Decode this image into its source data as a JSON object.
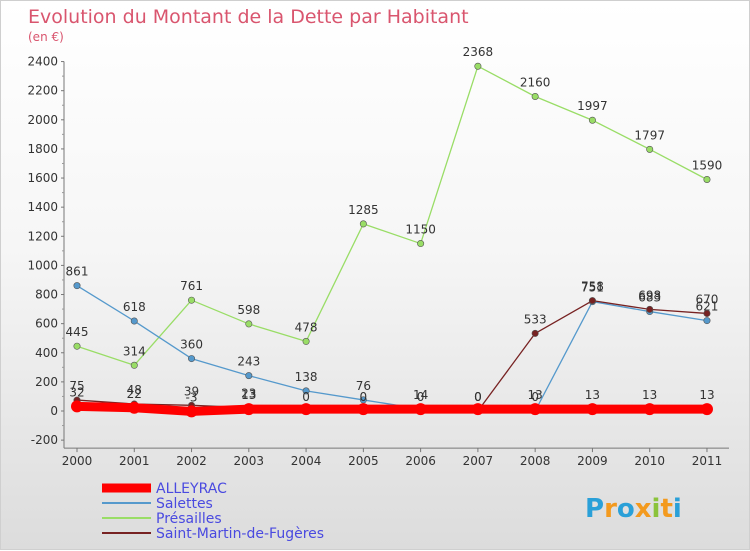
{
  "chart_data": {
    "type": "line",
    "title": "Evolution du Montant de la Dette par Habitant",
    "subtitle": "(en €)",
    "xlabel": "",
    "ylabel": "",
    "x": [
      "2000",
      "2001",
      "2002",
      "2003",
      "2004",
      "2005",
      "2006",
      "2007",
      "2008",
      "2009",
      "2010",
      "2011"
    ],
    "ylim": [
      -200,
      2400
    ],
    "yticks": [
      -200,
      0,
      200,
      400,
      600,
      800,
      1000,
      1200,
      1400,
      1600,
      1800,
      2000,
      2200,
      2400
    ],
    "grid": false,
    "legend_position": "bottom-left",
    "series": [
      {
        "name": "ALLEYRAC",
        "color": "#ff0000",
        "values": [
          32,
          22,
          -3,
          13,
          13,
          13,
          13,
          13,
          13,
          13,
          13,
          13
        ],
        "labels": [
          "32",
          "22",
          "-3",
          "13",
          "",
          "",
          "",
          "",
          "13",
          "13",
          "13",
          "13"
        ]
      },
      {
        "name": "Salettes",
        "color": "#5599cc",
        "values": [
          861,
          618,
          360,
          243,
          138,
          76,
          14,
          0,
          0,
          751,
          683,
          621
        ],
        "labels": [
          "861",
          "618",
          "360",
          "243",
          "138",
          "76",
          "14",
          "0",
          "0",
          "751",
          "683",
          "621"
        ]
      },
      {
        "name": "Présailles",
        "color": "#99dd66",
        "values": [
          445,
          314,
          761,
          598,
          478,
          1285,
          1150,
          2368,
          2160,
          1997,
          1797,
          1590
        ],
        "labels": [
          "445",
          "314",
          "761",
          "598",
          "478",
          "1285",
          "1150",
          "2368",
          "2160",
          "1997",
          "1797",
          "1590"
        ]
      },
      {
        "name": "Saint-Martin-de-Fugères",
        "color": "#772222",
        "values": [
          75,
          48,
          39,
          23,
          0,
          0,
          0,
          0,
          533,
          758,
          698,
          670
        ],
        "labels": [
          "75",
          "48",
          "39",
          "23",
          "0",
          "0",
          "0",
          "0",
          "533",
          "758",
          "698",
          "670"
        ]
      }
    ]
  },
  "logo": {
    "text": "Proxiti"
  }
}
